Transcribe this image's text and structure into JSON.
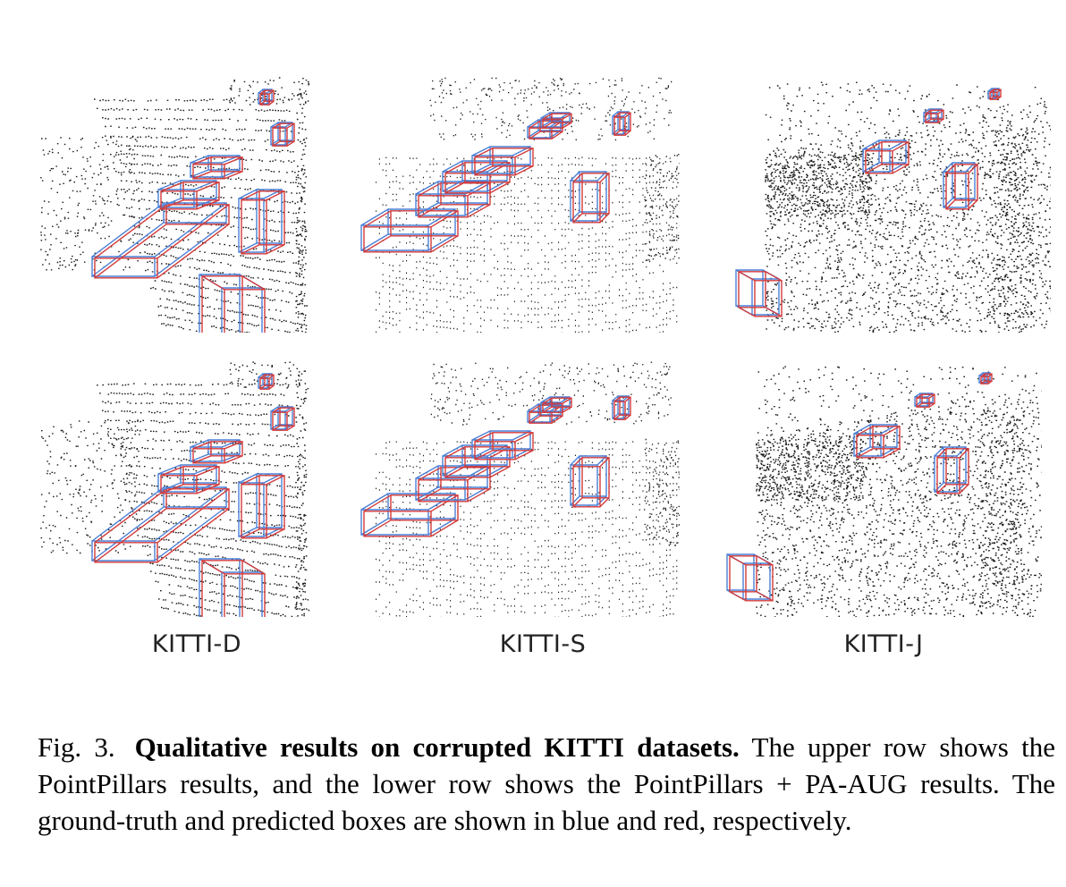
{
  "figure": {
    "columns": [
      {
        "label": "KITTI-D"
      },
      {
        "label": "KITTI-S"
      },
      {
        "label": "KITTI-J"
      }
    ],
    "rows": [
      "PointPillars",
      "PointPillars + PA-AUG"
    ],
    "box_colors": {
      "ground_truth": "#4a7fd6",
      "predicted": "#d23a3a"
    }
  },
  "caption": {
    "fig_label": "Fig. 3.",
    "title": "Qualitative results on corrupted KITTI datasets.",
    "text": "The upper row shows the PointPillars results, and the lower row shows the PointPillars + PA-AUG results. The ground-truth and predicted boxes are shown in blue and red, respectively."
  }
}
